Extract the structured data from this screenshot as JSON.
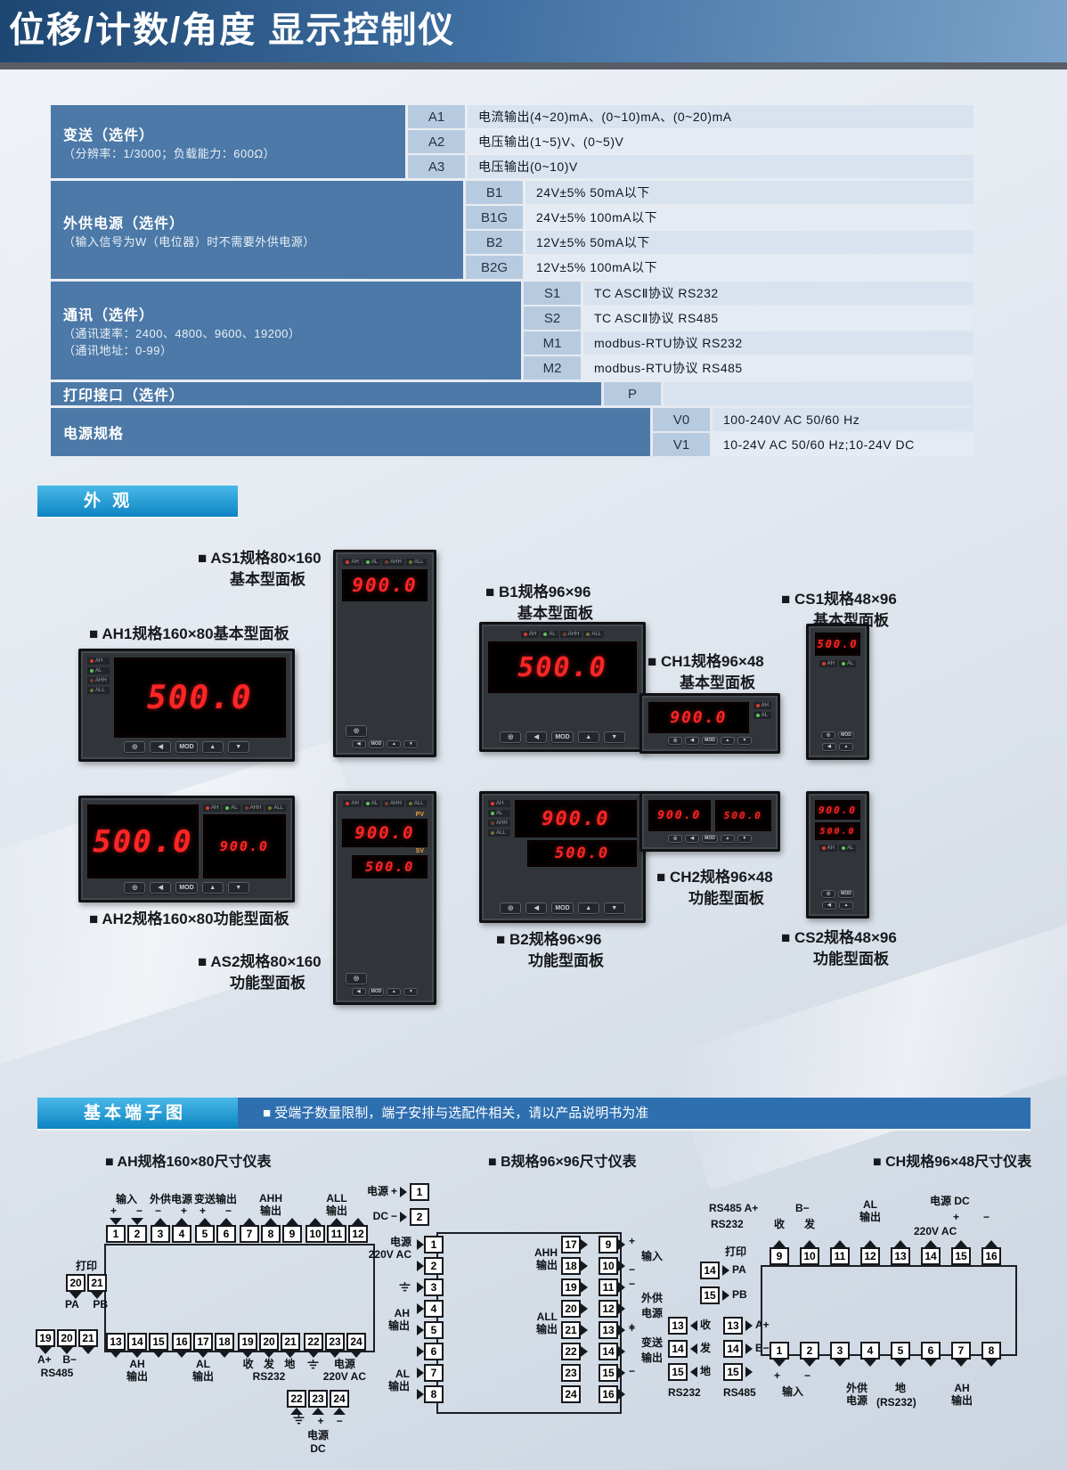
{
  "colors": {
    "title_bar_from": "#1d4672",
    "title_bar_to": "#7ba3c9",
    "accent_cyan_from": "#49b9e8",
    "accent_cyan_to": "#0d84c2",
    "notice_blue": "#2e6fb0",
    "group_cell": "#4c79a7",
    "code_cell": "#b7cbe0",
    "desc_cell": "#d9e3ef",
    "desc_cell_alt": "#e4ebf4",
    "seg_red": "#ff2525"
  },
  "header": {
    "title": "位移/计数/角度 显示控制仪"
  },
  "spec": {
    "groups": [
      {
        "label": "变送（选件）",
        "sub1": "（分辨率：1/3000；负载能力：600Ω）",
        "rows": [
          {
            "code": "A1",
            "desc": "电流输出(4~20)mA、(0~10)mA、(0~20)mA"
          },
          {
            "code": "A2",
            "desc": "电压输出(1~5)V、(0~5)V"
          },
          {
            "code": "A3",
            "desc": "电压输出(0~10)V"
          }
        ]
      },
      {
        "label": "外供电源（选件）",
        "sub1": "（输入信号为W（电位器）时不需要外供电源）",
        "rows": [
          {
            "code": "B1",
            "desc": "24V±5% 50mA以下"
          },
          {
            "code": "B1G",
            "desc": "24V±5% 100mA以下"
          },
          {
            "code": "B2",
            "desc": "12V±5% 50mA以下"
          },
          {
            "code": "B2G",
            "desc": "12V±5% 100mA以下"
          }
        ]
      },
      {
        "label": "通讯（选件）",
        "sub1": "（通讯速率：2400、4800、9600、19200）",
        "sub2": "（通讯地址：0-99）",
        "rows": [
          {
            "code": "S1",
            "desc": "TC ASCⅡ协议 RS232"
          },
          {
            "code": "S2",
            "desc": "TC ASCⅡ协议 RS485"
          },
          {
            "code": "M1",
            "desc": "modbus-RTU协议 RS232"
          },
          {
            "code": "M2",
            "desc": "modbus-RTU协议 RS485"
          }
        ]
      },
      {
        "label": "打印接口（选件）",
        "rows": [
          {
            "code": "P",
            "desc": ""
          }
        ]
      },
      {
        "label": "电源规格",
        "rows": [
          {
            "code": "V0",
            "desc": "100-240V AC 50/60 Hz"
          },
          {
            "code": "V1",
            "desc": "10-24V AC 50/60 Hz;10-24V DC"
          }
        ]
      }
    ]
  },
  "appearance": {
    "header": "外 观",
    "labels": {
      "as1": {
        "l1": "■ AS1规格80×160",
        "l2": "基本型面板"
      },
      "ah1": {
        "l1": "■ AH1规格160×80基本型面板"
      },
      "b1": {
        "l1": "■ B1规格96×96",
        "l2": "基本型面板"
      },
      "ch1": {
        "l1": "■ CH1规格96×48",
        "l2": "基本型面板"
      },
      "cs1": {
        "l1": "■ CS1规格48×96",
        "l2": "基本型面板"
      },
      "ah2": {
        "l1": "■ AH2规格160×80功能型面板"
      },
      "as2": {
        "l1": "■ AS2规格80×160",
        "l2": "功能型面板"
      },
      "b2": {
        "l1": "■ B2规格96×96",
        "l2": "功能型面板"
      },
      "ch2": {
        "l1": "■ CH2规格96×48",
        "l2": "功能型面板"
      },
      "cs2": {
        "l1": "■ CS2规格48×96",
        "l2": "功能型面板"
      }
    },
    "displays": {
      "as1": "900.0",
      "ah1": "500.0",
      "b1": "500.0",
      "ch1": "900.0",
      "cs1": "500.0",
      "ah2_main": "500.0",
      "ah2_sub": "900.0",
      "as2_pv": "900.0",
      "as2_sv": "500.0",
      "b2_pv": "900.0",
      "b2_sv": "500.0",
      "ch2_pv": "900.0",
      "ch2_sv": "500.0",
      "cs2_pv": "900.0",
      "cs2_sv": "500.0"
    },
    "pv": "PV",
    "sv": "SV",
    "leds4": [
      {
        "t": "AH"
      },
      {
        "t": "AL"
      },
      {
        "t": "AHH"
      },
      {
        "t": "ALL"
      }
    ],
    "leds2": [
      {
        "t": "AH"
      },
      {
        "t": "AL"
      }
    ],
    "btns5": [
      "◎",
      "◀",
      "MOD",
      "▲",
      "▼"
    ],
    "btns4": [
      "◀",
      "MOD",
      "▲",
      "▼"
    ],
    "btns2a": [
      "◎",
      "MOD"
    ],
    "btns2b": [
      "◀",
      "▲"
    ],
    "btn_circle": "◎"
  },
  "terminals": {
    "header": "基本端子图",
    "notice": "■ 受端子数量限制，端子安排与选配件相关，请以产品说明书为准",
    "ah": {
      "title": "■ AH规格160×80尺寸仪表",
      "top": [
        {
          "label": "输入",
          "m1": "+",
          "m2": "−",
          "terms": [
            "1",
            "2"
          ]
        },
        {
          "label": "外供电源",
          "m1": "−",
          "m2": "+",
          "terms": [
            "3",
            "4"
          ]
        },
        {
          "label": "变送输出",
          "m1": "+",
          "m2": "−",
          "terms": [
            "5",
            "6"
          ]
        },
        {
          "l1": "AHH",
          "l2": "输出",
          "terms": [
            "7",
            "8",
            "9"
          ]
        },
        {
          "l1": "ALL",
          "l2": "输出",
          "terms": [
            "10",
            "11",
            "12"
          ]
        }
      ],
      "print": {
        "label": "打印",
        "terms": [
          "20",
          "21"
        ],
        "s1": "PA",
        "s2": "PB"
      },
      "rs485": {
        "terms": [
          "19",
          "20",
          "21"
        ],
        "s1": "A+",
        "s2": "B−",
        "sub": "RS485"
      },
      "bottom": [
        {
          "l1": "AH",
          "l2": "输出",
          "terms": [
            "13",
            "14",
            "15"
          ]
        },
        {
          "l1": "AL",
          "l2": "输出",
          "terms": [
            "16",
            "17",
            "18"
          ]
        },
        {
          "s1": "收",
          "s2": "发",
          "s3": "地",
          "sub": "RS232",
          "terms": [
            "19",
            "20",
            "21"
          ]
        },
        {
          "l1": "电源",
          "l2": "220V AC",
          "terms": [
            "22",
            "23",
            "24"
          ]
        }
      ],
      "dc": {
        "terms": [
          "22",
          "23",
          "24"
        ],
        "m2": "+",
        "m3": "−",
        "l1": "电源",
        "l2": "DC"
      }
    },
    "b": {
      "title": "■ B规格96×96尺寸仪表",
      "dc": {
        "l1": "电源",
        "l2": "DC",
        "m1": "+",
        "m2": "−",
        "t1": "1",
        "t2": "2"
      },
      "left_terms": [
        "1",
        "2",
        "3",
        "4",
        "5",
        "6",
        "7",
        "8"
      ],
      "mid_terms": [
        "17",
        "18",
        "19",
        "20",
        "21",
        "22"
      ],
      "mid_terms2": [
        "23",
        "24"
      ],
      "right_terms": [
        "9",
        "10",
        "11",
        "12",
        "13",
        "14",
        "15",
        "16"
      ],
      "lbl_power": "电源",
      "lbl_power2": "220V AC",
      "lbl_ah1": "AH",
      "lbl_ah2": "输出",
      "lbl_al1": "AL",
      "lbl_al2": "输出",
      "lbl_ahh1": "AHH",
      "lbl_ahh2": "输出",
      "lbl_all1": "ALL",
      "lbl_all2": "输出",
      "side_in": {
        "m1": "+",
        "label": "输入",
        "m2": "−"
      },
      "side_ext": {
        "m1": "−",
        "l1": "外供",
        "l2": "电源",
        "m2": "+"
      },
      "side_tx": {
        "m1": "+",
        "l1": "变送",
        "l2": "输出",
        "m2": "−"
      },
      "print": {
        "label": "打印",
        "t1": "14",
        "s1": "PA",
        "t2": "15",
        "s2": "PB"
      },
      "rs232": {
        "rows": [
          {
            "n": "13",
            "t": "收"
          },
          {
            "n": "14",
            "t": "发"
          },
          {
            "n": "15",
            "t": "地"
          }
        ],
        "sub": "RS232"
      },
      "rs485": {
        "rows": [
          {
            "n": "13",
            "t": "A+"
          },
          {
            "n": "14",
            "t": "B−"
          },
          {
            "n": "15",
            "t": ""
          }
        ],
        "sub": "RS485"
      }
    },
    "ch": {
      "title": "■ CH规格96×48尺寸仪表",
      "rs485_lbl": "RS485 A+",
      "rs232_lbl": "RS232",
      "recv": "收",
      "send": "发",
      "bminus": "B−",
      "al1": "AL",
      "al2": "输出",
      "pwr1": "电源 DC",
      "pm_p": "+",
      "pm_m": "−",
      "pwr2": "220V AC",
      "top_terms": [
        "9",
        "10",
        "11",
        "12",
        "13",
        "14",
        "15",
        "16"
      ],
      "bot_terms": [
        "1",
        "2",
        "3",
        "4",
        "5",
        "6",
        "7",
        "8"
      ],
      "in_m1": "+",
      "in_m2": "−",
      "in_lbl": "输入",
      "ext1": "外供",
      "ext2": "电源",
      "gnd": "地",
      "gnd2": "(RS232)",
      "ahout1": "AH",
      "ahout2": "输出"
    }
  }
}
